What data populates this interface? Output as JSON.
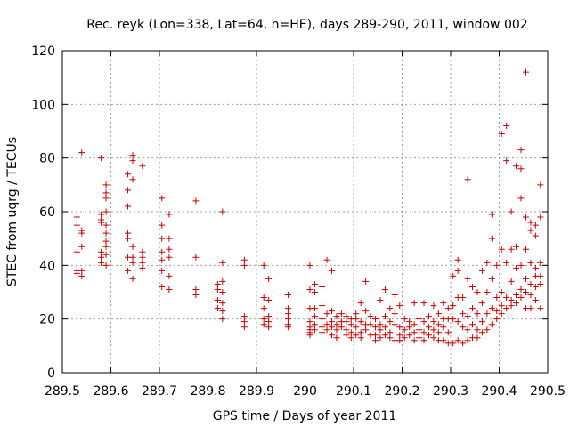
{
  "chart_data": {
    "type": "scatter",
    "title": "Rec. reyk (Lon=338, Lat=64, h=HE), days 289-290, 2011, window 002",
    "xlabel": "GPS time / Days of year 2011",
    "ylabel": "STEC from uqrg / TECUs",
    "xlim": [
      289.5,
      290.5
    ],
    "ylim": [
      0,
      120
    ],
    "x_ticks": [
      289.5,
      289.6,
      289.7,
      289.8,
      289.9,
      290.0,
      290.1,
      290.2,
      290.3,
      290.4,
      290.5
    ],
    "x_tick_labels": [
      "289.5",
      "289.6",
      "289.7",
      "289.8",
      "289.9",
      "290",
      "290.1",
      "290.2",
      "290.3",
      "290.4",
      "290.5"
    ],
    "y_ticks": [
      0,
      20,
      40,
      60,
      80,
      100,
      120
    ],
    "y_tick_labels": [
      "0",
      "20",
      "40",
      "60",
      "80",
      "100",
      "120"
    ],
    "grid": true,
    "marker": "+",
    "color": "#cc0000",
    "series": [
      {
        "name": "STEC",
        "points": [
          [
            289.53,
            58
          ],
          [
            289.53,
            55
          ],
          [
            289.53,
            45
          ],
          [
            289.53,
            38
          ],
          [
            289.53,
            37
          ],
          [
            289.54,
            82
          ],
          [
            289.54,
            53
          ],
          [
            289.54,
            52
          ],
          [
            289.54,
            47
          ],
          [
            289.54,
            38
          ],
          [
            289.54,
            36
          ],
          [
            289.58,
            80
          ],
          [
            289.58,
            59
          ],
          [
            289.58,
            57
          ],
          [
            289.58,
            56
          ],
          [
            289.58,
            45
          ],
          [
            289.58,
            43
          ],
          [
            289.58,
            41
          ],
          [
            289.59,
            70
          ],
          [
            289.59,
            67
          ],
          [
            289.59,
            65
          ],
          [
            289.59,
            60
          ],
          [
            289.59,
            55
          ],
          [
            289.59,
            52
          ],
          [
            289.59,
            49
          ],
          [
            289.59,
            47
          ],
          [
            289.59,
            44
          ],
          [
            289.59,
            40
          ],
          [
            289.635,
            74
          ],
          [
            289.635,
            68
          ],
          [
            289.635,
            62
          ],
          [
            289.635,
            52
          ],
          [
            289.635,
            50
          ],
          [
            289.635,
            43
          ],
          [
            289.635,
            38
          ],
          [
            289.645,
            81
          ],
          [
            289.645,
            79
          ],
          [
            289.645,
            72
          ],
          [
            289.645,
            47
          ],
          [
            289.645,
            43
          ],
          [
            289.645,
            41
          ],
          [
            289.645,
            35
          ],
          [
            289.665,
            77
          ],
          [
            289.665,
            45
          ],
          [
            289.665,
            43
          ],
          [
            289.665,
            41
          ],
          [
            289.665,
            39
          ],
          [
            289.705,
            65
          ],
          [
            289.705,
            55
          ],
          [
            289.705,
            50
          ],
          [
            289.705,
            45
          ],
          [
            289.705,
            42
          ],
          [
            289.705,
            38
          ],
          [
            289.705,
            32
          ],
          [
            289.72,
            59
          ],
          [
            289.72,
            50
          ],
          [
            289.72,
            46
          ],
          [
            289.72,
            43
          ],
          [
            289.72,
            36
          ],
          [
            289.72,
            31
          ],
          [
            289.775,
            64
          ],
          [
            289.775,
            43
          ],
          [
            289.775,
            31
          ],
          [
            289.775,
            29
          ],
          [
            289.82,
            33
          ],
          [
            289.82,
            31
          ],
          [
            289.82,
            27
          ],
          [
            289.82,
            24
          ],
          [
            289.83,
            60
          ],
          [
            289.83,
            41
          ],
          [
            289.83,
            34
          ],
          [
            289.83,
            30
          ],
          [
            289.83,
            26
          ],
          [
            289.83,
            23
          ],
          [
            289.83,
            20
          ],
          [
            289.875,
            42
          ],
          [
            289.875,
            40
          ],
          [
            289.875,
            21
          ],
          [
            289.875,
            19
          ],
          [
            289.875,
            17
          ],
          [
            289.915,
            40
          ],
          [
            289.915,
            28
          ],
          [
            289.915,
            24
          ],
          [
            289.915,
            20
          ],
          [
            289.915,
            18
          ],
          [
            289.925,
            35
          ],
          [
            289.925,
            27
          ],
          [
            289.925,
            21
          ],
          [
            289.925,
            19
          ],
          [
            289.925,
            17
          ],
          [
            289.965,
            29
          ],
          [
            289.965,
            24
          ],
          [
            289.965,
            22
          ],
          [
            289.965,
            20
          ],
          [
            289.965,
            18
          ],
          [
            289.965,
            17
          ],
          [
            290.01,
            40
          ],
          [
            290.01,
            31
          ],
          [
            290.01,
            24
          ],
          [
            290.01,
            19
          ],
          [
            290.01,
            17
          ],
          [
            290.01,
            16
          ],
          [
            290.01,
            15
          ],
          [
            290.01,
            14
          ],
          [
            290.02,
            33
          ],
          [
            290.02,
            30
          ],
          [
            290.02,
            24
          ],
          [
            290.02,
            21
          ],
          [
            290.02,
            18
          ],
          [
            290.02,
            16
          ],
          [
            290.035,
            32
          ],
          [
            290.035,
            25
          ],
          [
            290.035,
            20
          ],
          [
            290.035,
            17
          ],
          [
            290.035,
            15
          ],
          [
            290.045,
            42
          ],
          [
            290.045,
            22
          ],
          [
            290.045,
            18
          ],
          [
            290.045,
            16
          ],
          [
            290.055,
            38
          ],
          [
            290.055,
            23
          ],
          [
            290.055,
            19
          ],
          [
            290.055,
            17
          ],
          [
            290.055,
            14
          ],
          [
            290.065,
            21
          ],
          [
            290.065,
            18
          ],
          [
            290.065,
            16
          ],
          [
            290.065,
            13
          ],
          [
            290.075,
            22
          ],
          [
            290.075,
            19
          ],
          [
            290.075,
            17
          ],
          [
            290.085,
            21
          ],
          [
            290.085,
            19
          ],
          [
            290.085,
            16
          ],
          [
            290.085,
            14
          ],
          [
            290.095,
            20
          ],
          [
            290.095,
            18
          ],
          [
            290.095,
            15
          ],
          [
            290.095,
            13
          ],
          [
            290.105,
            22
          ],
          [
            290.105,
            20
          ],
          [
            290.105,
            17
          ],
          [
            290.105,
            14
          ],
          [
            290.115,
            26
          ],
          [
            290.115,
            19
          ],
          [
            290.115,
            15
          ],
          [
            290.115,
            13
          ],
          [
            290.125,
            34
          ],
          [
            290.125,
            23
          ],
          [
            290.125,
            18
          ],
          [
            290.125,
            16
          ],
          [
            290.135,
            21
          ],
          [
            290.135,
            18
          ],
          [
            290.135,
            14
          ],
          [
            290.145,
            20
          ],
          [
            290.145,
            17
          ],
          [
            290.145,
            14
          ],
          [
            290.145,
            12
          ],
          [
            290.155,
            27
          ],
          [
            290.155,
            18
          ],
          [
            290.155,
            16
          ],
          [
            290.155,
            13
          ],
          [
            290.165,
            31
          ],
          [
            290.165,
            21
          ],
          [
            290.165,
            17
          ],
          [
            290.165,
            14
          ],
          [
            290.175,
            24
          ],
          [
            290.175,
            19
          ],
          [
            290.175,
            15
          ],
          [
            290.175,
            13
          ],
          [
            290.185,
            29
          ],
          [
            290.185,
            22
          ],
          [
            290.185,
            18
          ],
          [
            290.185,
            12
          ],
          [
            290.195,
            25
          ],
          [
            290.195,
            17
          ],
          [
            290.195,
            14
          ],
          [
            290.195,
            12
          ],
          [
            290.205,
            20
          ],
          [
            290.205,
            16
          ],
          [
            290.205,
            13
          ],
          [
            290.215,
            19
          ],
          [
            290.215,
            17
          ],
          [
            290.215,
            14
          ],
          [
            290.225,
            26
          ],
          [
            290.225,
            18
          ],
          [
            290.225,
            15
          ],
          [
            290.225,
            12
          ],
          [
            290.235,
            20
          ],
          [
            290.235,
            16
          ],
          [
            290.235,
            13
          ],
          [
            290.245,
            26
          ],
          [
            290.245,
            19
          ],
          [
            290.245,
            15
          ],
          [
            290.245,
            12
          ],
          [
            290.255,
            21
          ],
          [
            290.255,
            17
          ],
          [
            290.255,
            14
          ],
          [
            290.265,
            25
          ],
          [
            290.265,
            19
          ],
          [
            290.265,
            16
          ],
          [
            290.265,
            13
          ],
          [
            290.275,
            22
          ],
          [
            290.275,
            18
          ],
          [
            290.275,
            15
          ],
          [
            290.275,
            12
          ],
          [
            290.285,
            26
          ],
          [
            290.285,
            20
          ],
          [
            290.285,
            17
          ],
          [
            290.285,
            12
          ],
          [
            290.295,
            24
          ],
          [
            290.295,
            20
          ],
          [
            290.295,
            15
          ],
          [
            290.295,
            11
          ],
          [
            290.305,
            36
          ],
          [
            290.305,
            25
          ],
          [
            290.305,
            20
          ],
          [
            290.305,
            11
          ],
          [
            290.315,
            42
          ],
          [
            290.315,
            38
          ],
          [
            290.315,
            28
          ],
          [
            290.315,
            19
          ],
          [
            290.315,
            12
          ],
          [
            290.325,
            28
          ],
          [
            290.325,
            22
          ],
          [
            290.325,
            17
          ],
          [
            290.325,
            11
          ],
          [
            290.335,
            72
          ],
          [
            290.335,
            35
          ],
          [
            290.335,
            21
          ],
          [
            290.335,
            16
          ],
          [
            290.335,
            12
          ],
          [
            290.345,
            32
          ],
          [
            290.345,
            24
          ],
          [
            290.345,
            18
          ],
          [
            290.345,
            13
          ],
          [
            290.355,
            30
          ],
          [
            290.355,
            22
          ],
          [
            290.355,
            16
          ],
          [
            290.355,
            13
          ],
          [
            290.365,
            38
          ],
          [
            290.365,
            26
          ],
          [
            290.365,
            19
          ],
          [
            290.365,
            15
          ],
          [
            290.375,
            41
          ],
          [
            290.375,
            30
          ],
          [
            290.375,
            22
          ],
          [
            290.375,
            16
          ],
          [
            290.385,
            59
          ],
          [
            290.385,
            50
          ],
          [
            290.385,
            35
          ],
          [
            290.385,
            24
          ],
          [
            290.385,
            18
          ],
          [
            290.395,
            40
          ],
          [
            290.395,
            28
          ],
          [
            290.395,
            23
          ],
          [
            290.395,
            20
          ],
          [
            290.405,
            89
          ],
          [
            290.405,
            46
          ],
          [
            290.405,
            30
          ],
          [
            290.405,
            25
          ],
          [
            290.405,
            22
          ],
          [
            290.415,
            92
          ],
          [
            290.415,
            79
          ],
          [
            290.415,
            41
          ],
          [
            290.415,
            28
          ],
          [
            290.415,
            24
          ],
          [
            290.425,
            60
          ],
          [
            290.425,
            46
          ],
          [
            290.425,
            34
          ],
          [
            290.425,
            27
          ],
          [
            290.425,
            25
          ],
          [
            290.435,
            77
          ],
          [
            290.435,
            47
          ],
          [
            290.435,
            39
          ],
          [
            290.435,
            29
          ],
          [
            290.435,
            26
          ],
          [
            290.445,
            83
          ],
          [
            290.445,
            76
          ],
          [
            290.445,
            65
          ],
          [
            290.445,
            40
          ],
          [
            290.445,
            31
          ],
          [
            290.445,
            28
          ],
          [
            290.455,
            112
          ],
          [
            290.455,
            58
          ],
          [
            290.455,
            46
          ],
          [
            290.455,
            35
          ],
          [
            290.455,
            30
          ],
          [
            290.455,
            24
          ],
          [
            290.465,
            56
          ],
          [
            290.465,
            53
          ],
          [
            290.465,
            41
          ],
          [
            290.465,
            33
          ],
          [
            290.465,
            29
          ],
          [
            290.465,
            24
          ],
          [
            290.475,
            55
          ],
          [
            290.475,
            51
          ],
          [
            290.475,
            39
          ],
          [
            290.475,
            36
          ],
          [
            290.475,
            32
          ],
          [
            290.475,
            27
          ],
          [
            290.485,
            70
          ],
          [
            290.485,
            58
          ],
          [
            290.485,
            41
          ],
          [
            290.485,
            36
          ],
          [
            290.485,
            33
          ],
          [
            290.485,
            24
          ]
        ]
      }
    ]
  }
}
